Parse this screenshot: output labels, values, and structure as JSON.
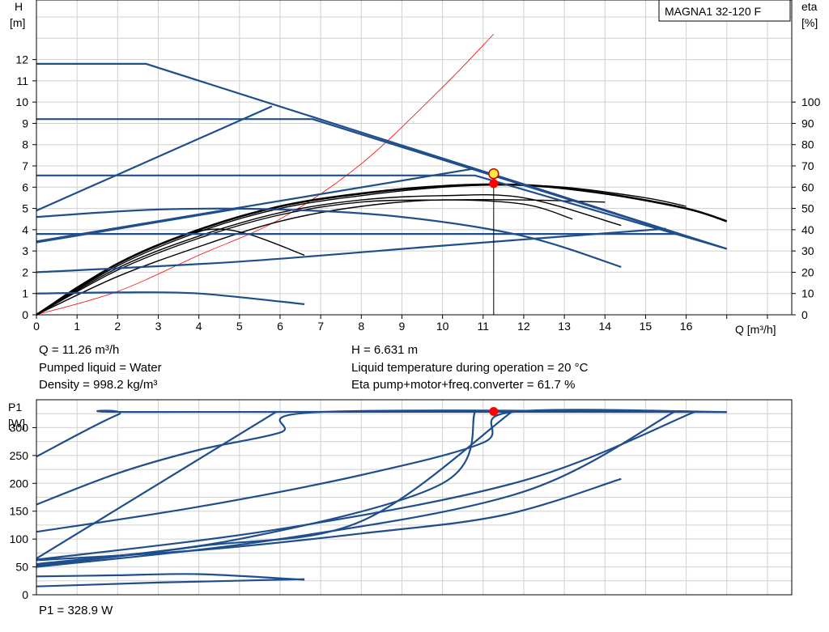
{
  "model": "MAGNA1 32-120 F",
  "top_chart": {
    "ylabel_left_line1": "H",
    "ylabel_left_line2": "[m]",
    "ylabel_right_line1": "eta",
    "ylabel_right_line2": "[%]",
    "xlabel": "Q [m³/h]"
  },
  "bottom_chart": {
    "ylabel_line1": "P1",
    "ylabel_line2": "[W]"
  },
  "info": {
    "q": "Q = 11.26 m³/h",
    "h": "H = 6.631 m",
    "liquid": "Pumped liquid = Water",
    "temp": "Liquid temperature during operation = 20 °C",
    "density": "Density = 998.2 kg/m³",
    "eta": "Eta pump+motor+freq.converter = 61.7 %",
    "p1": "P1 = 328.9 W"
  },
  "colors": {
    "curve": "#1f4e8c",
    "efficiency": "#000000",
    "system": "#ff0000",
    "operating_point": "#ff0000",
    "duty_point": "#ffeb3b",
    "grid": "#d0d0d0"
  },
  "chart_data": [
    {
      "type": "line",
      "name": "head",
      "xlabel": "Q [m³/h]",
      "ylabel": "H [m]",
      "y2label": "eta [%]",
      "xlim": [
        0,
        18.6
      ],
      "ylim": [
        0,
        14.8
      ],
      "y2lim": [
        0,
        148
      ],
      "xticks": [
        0,
        1,
        2,
        3,
        4,
        5,
        6,
        7,
        8,
        9,
        10,
        11,
        12,
        13,
        14,
        15,
        16
      ],
      "yticks": [
        0,
        1,
        2,
        3,
        4,
        5,
        6,
        7,
        8,
        9,
        10,
        11,
        12
      ],
      "y2ticks": [
        0,
        10,
        20,
        30,
        40,
        50,
        60,
        70,
        80,
        90,
        100
      ],
      "grid": true,
      "head_curves": [
        [
          [
            0,
            11.8
          ],
          [
            2.7,
            11.8
          ],
          [
            17,
            3.1
          ]
        ],
        [
          [
            0,
            9.2
          ],
          [
            6.8,
            9.2
          ],
          [
            17,
            3.1
          ]
        ],
        [
          [
            0,
            6.55
          ],
          [
            10.8,
            6.55
          ],
          [
            17,
            3.1
          ]
        ],
        [
          [
            0,
            4.9
          ],
          [
            5.8,
            9.8
          ]
        ],
        [
          [
            0,
            3.45
          ],
          [
            10.8,
            6.88
          ]
        ],
        [
          [
            0,
            4.6
          ],
          [
            3,
            4.95
          ],
          [
            6,
            4.95
          ],
          [
            9,
            4.6
          ],
          [
            12,
            3.7
          ],
          [
            14.4,
            2.25
          ]
        ],
        [
          [
            0,
            3.8
          ],
          [
            15.8,
            3.8
          ]
        ],
        [
          [
            0,
            3.4
          ],
          [
            5,
            5.0
          ]
        ],
        [
          [
            0,
            2.0
          ],
          [
            5,
            2.5
          ],
          [
            10,
            3.25
          ],
          [
            15.5,
            4.05
          ]
        ],
        [
          [
            0,
            1.0
          ],
          [
            2,
            1.05
          ],
          [
            4,
            1.0
          ],
          [
            6.6,
            0.5
          ]
        ]
      ],
      "efficiency_curves": [
        [
          [
            0,
            0
          ],
          [
            2,
            24
          ],
          [
            4,
            40
          ],
          [
            6,
            51
          ],
          [
            8,
            57
          ],
          [
            10,
            60.5
          ],
          [
            12,
            61
          ],
          [
            14,
            57
          ],
          [
            16,
            50
          ],
          [
            17,
            44
          ]
        ],
        [
          [
            0,
            0
          ],
          [
            2,
            23
          ],
          [
            4,
            39
          ],
          [
            6,
            50
          ],
          [
            8,
            56
          ],
          [
            10,
            60
          ],
          [
            11.5,
            61
          ],
          [
            13,
            60
          ],
          [
            15,
            55
          ],
          [
            16,
            51
          ]
        ],
        [
          [
            0,
            0
          ],
          [
            2,
            22
          ],
          [
            4,
            37
          ],
          [
            6,
            48
          ],
          [
            8,
            54
          ],
          [
            10,
            56
          ],
          [
            12,
            55
          ],
          [
            14.4,
            42
          ]
        ],
        [
          [
            0,
            0
          ],
          [
            2,
            21
          ],
          [
            4,
            36
          ],
          [
            6,
            47
          ],
          [
            8,
            53
          ],
          [
            10,
            54
          ],
          [
            12,
            54
          ],
          [
            14,
            53
          ]
        ],
        [
          [
            0,
            0
          ],
          [
            2,
            18
          ],
          [
            4,
            32
          ],
          [
            6,
            44
          ],
          [
            8,
            51
          ],
          [
            10,
            54
          ],
          [
            12,
            52
          ],
          [
            13.2,
            45
          ]
        ],
        [
          [
            0,
            0
          ],
          [
            1,
            13
          ],
          [
            2,
            24
          ],
          [
            3,
            33
          ],
          [
            4.2,
            40
          ],
          [
            5.2,
            38
          ],
          [
            6.6,
            28
          ]
        ]
      ],
      "system_curve": [
        [
          0,
          0
        ],
        [
          2,
          1.1
        ],
        [
          4,
          2.8
        ],
        [
          6,
          4.5
        ],
        [
          8,
          7.1
        ],
        [
          10,
          10.7
        ],
        [
          11.26,
          13.2
        ]
      ],
      "duty_point": {
        "q": 11.26,
        "h": 6.631
      },
      "operating_point": {
        "q": 11.26,
        "eta": 61.7
      }
    },
    {
      "type": "line",
      "name": "power",
      "ylabel": "P1 [W]",
      "xlim": [
        0,
        18.6
      ],
      "ylim": [
        0,
        350
      ],
      "yticks": [
        0,
        50,
        100,
        150,
        200,
        250,
        300
      ],
      "grid": true,
      "power_curves": [
        [
          [
            0,
            248
          ],
          [
            2,
            323
          ],
          [
            2.7,
            328
          ],
          [
            17,
            328
          ]
        ],
        [
          [
            0,
            162
          ],
          [
            2,
            218
          ],
          [
            4,
            260
          ],
          [
            6,
            291
          ],
          [
            7,
            328
          ],
          [
            17,
            328
          ]
        ],
        [
          [
            0,
            113
          ],
          [
            4,
            158
          ],
          [
            8,
            215
          ],
          [
            11,
            273
          ],
          [
            11.7,
            328
          ],
          [
            17,
            328
          ]
        ],
        [
          [
            0,
            65
          ],
          [
            5.9,
            328
          ]
        ],
        [
          [
            0,
            62
          ],
          [
            4,
            80
          ],
          [
            8,
            110
          ],
          [
            11.5,
            143
          ],
          [
            14.4,
            208
          ]
        ],
        [
          [
            0,
            33
          ],
          [
            2,
            35
          ],
          [
            4,
            37
          ],
          [
            6.6,
            27
          ]
        ],
        [
          [
            0,
            55
          ],
          [
            5,
            100
          ],
          [
            10,
            200
          ],
          [
            10.8,
            328
          ]
        ],
        [
          [
            0,
            63
          ],
          [
            6,
            118
          ],
          [
            12,
            205
          ],
          [
            16.2,
            328
          ]
        ],
        [
          [
            0,
            50
          ],
          [
            6,
            100
          ],
          [
            12,
            185
          ],
          [
            15.7,
            328
          ]
        ],
        [
          [
            0,
            15
          ],
          [
            3,
            22
          ],
          [
            6.6,
            28
          ]
        ],
        [
          [
            0,
            52
          ],
          [
            4,
            87
          ],
          [
            8,
            132
          ],
          [
            11.7,
            328
          ]
        ]
      ],
      "operating_point": {
        "q": 11.26,
        "p1": 328.9
      }
    }
  ]
}
